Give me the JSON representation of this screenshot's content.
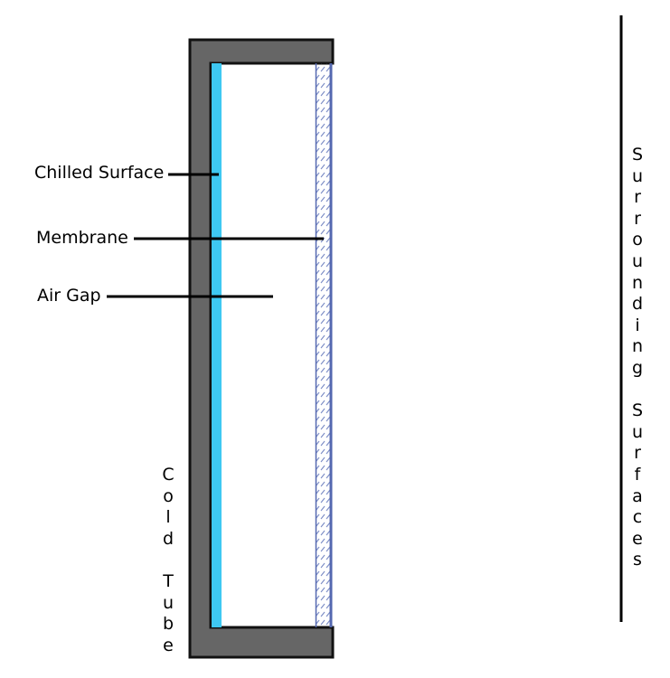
{
  "labels": {
    "chilled_surface": "Chilled Surface",
    "membrane": "Membrane",
    "air_gap": "Air Gap",
    "cold_tube": "Cold Tube",
    "surrounding_surfaces": "Surrounding Surfaces"
  },
  "colors": {
    "tube_wall": "#666666",
    "chilled_surface": "#3ec8f2",
    "membrane": "#5468b0",
    "membrane_hatch": "#8090c8",
    "line": "#000000"
  }
}
